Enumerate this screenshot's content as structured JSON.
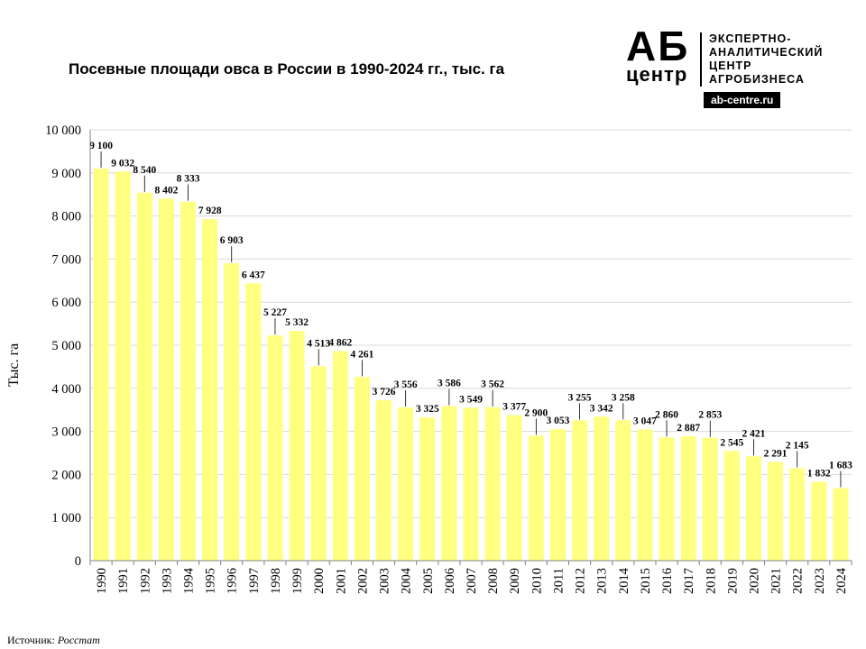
{
  "chart_data": {
    "type": "bar",
    "title": "Посевные площади овса в России в 1990-2024 гг., тыс. га",
    "ylabel": "Тыс. га",
    "xlabel": "",
    "ylim": [
      0,
      10000
    ],
    "ytick_labels": [
      "0",
      "1 000",
      "2 000",
      "3 000",
      "4 000",
      "5 000",
      "6 000",
      "7 000",
      "8 000",
      "9 000",
      "10 000"
    ],
    "grid": true,
    "categories": [
      "1990",
      "1991",
      "1992",
      "1993",
      "1994",
      "1995",
      "1996",
      "1997",
      "1998",
      "1999",
      "2000",
      "2001",
      "2002",
      "2003",
      "2004",
      "2005",
      "2006",
      "2007",
      "2008",
      "2009",
      "2010",
      "2011",
      "2012",
      "2013",
      "2014",
      "2015",
      "2016",
      "2017",
      "2018",
      "2019",
      "2020",
      "2021",
      "2022",
      "2023",
      "2024"
    ],
    "values": [
      9100,
      9032,
      8540,
      8402,
      8333,
      7928,
      6903,
      6437,
      5227,
      5332,
      4513,
      4862,
      4261,
      3726,
      3556,
      3325,
      3586,
      3549,
      3562,
      3377,
      2900,
      3053,
      3255,
      3342,
      3258,
      3047,
      2860,
      2887,
      2853,
      2545,
      2421,
      2291,
      2145,
      1832,
      1683
    ],
    "value_labels": [
      "9 100",
      "9 032",
      "8 540",
      "8 402",
      "8 333",
      "7 928",
      "6 903",
      "6 437",
      "5 227",
      "5 332",
      "4 513",
      "4 862",
      "4 261",
      "3 726",
      "3 556",
      "3 325",
      "3 586",
      "3 549",
      "3 562",
      "3 377",
      "2 900",
      "3 053",
      "3 255",
      "3 342",
      "3 258",
      "3 047",
      "2 860",
      "2 887",
      "2 853",
      "2 545",
      "2 421",
      "2 291",
      "2 145",
      "1 832",
      "1 683"
    ],
    "bar_color": "#ffff80"
  },
  "logo": {
    "mark_top": "АБ",
    "mark_bottom": "центр",
    "lines": [
      "ЭКСПЕРТНО-",
      "АНАЛИТИЧЕСКИЙ",
      "ЦЕНТР",
      "АГРОБИЗНЕСА"
    ],
    "url": "ab-centre.ru"
  },
  "source": {
    "label": "Источник:",
    "name": "Росстат"
  }
}
